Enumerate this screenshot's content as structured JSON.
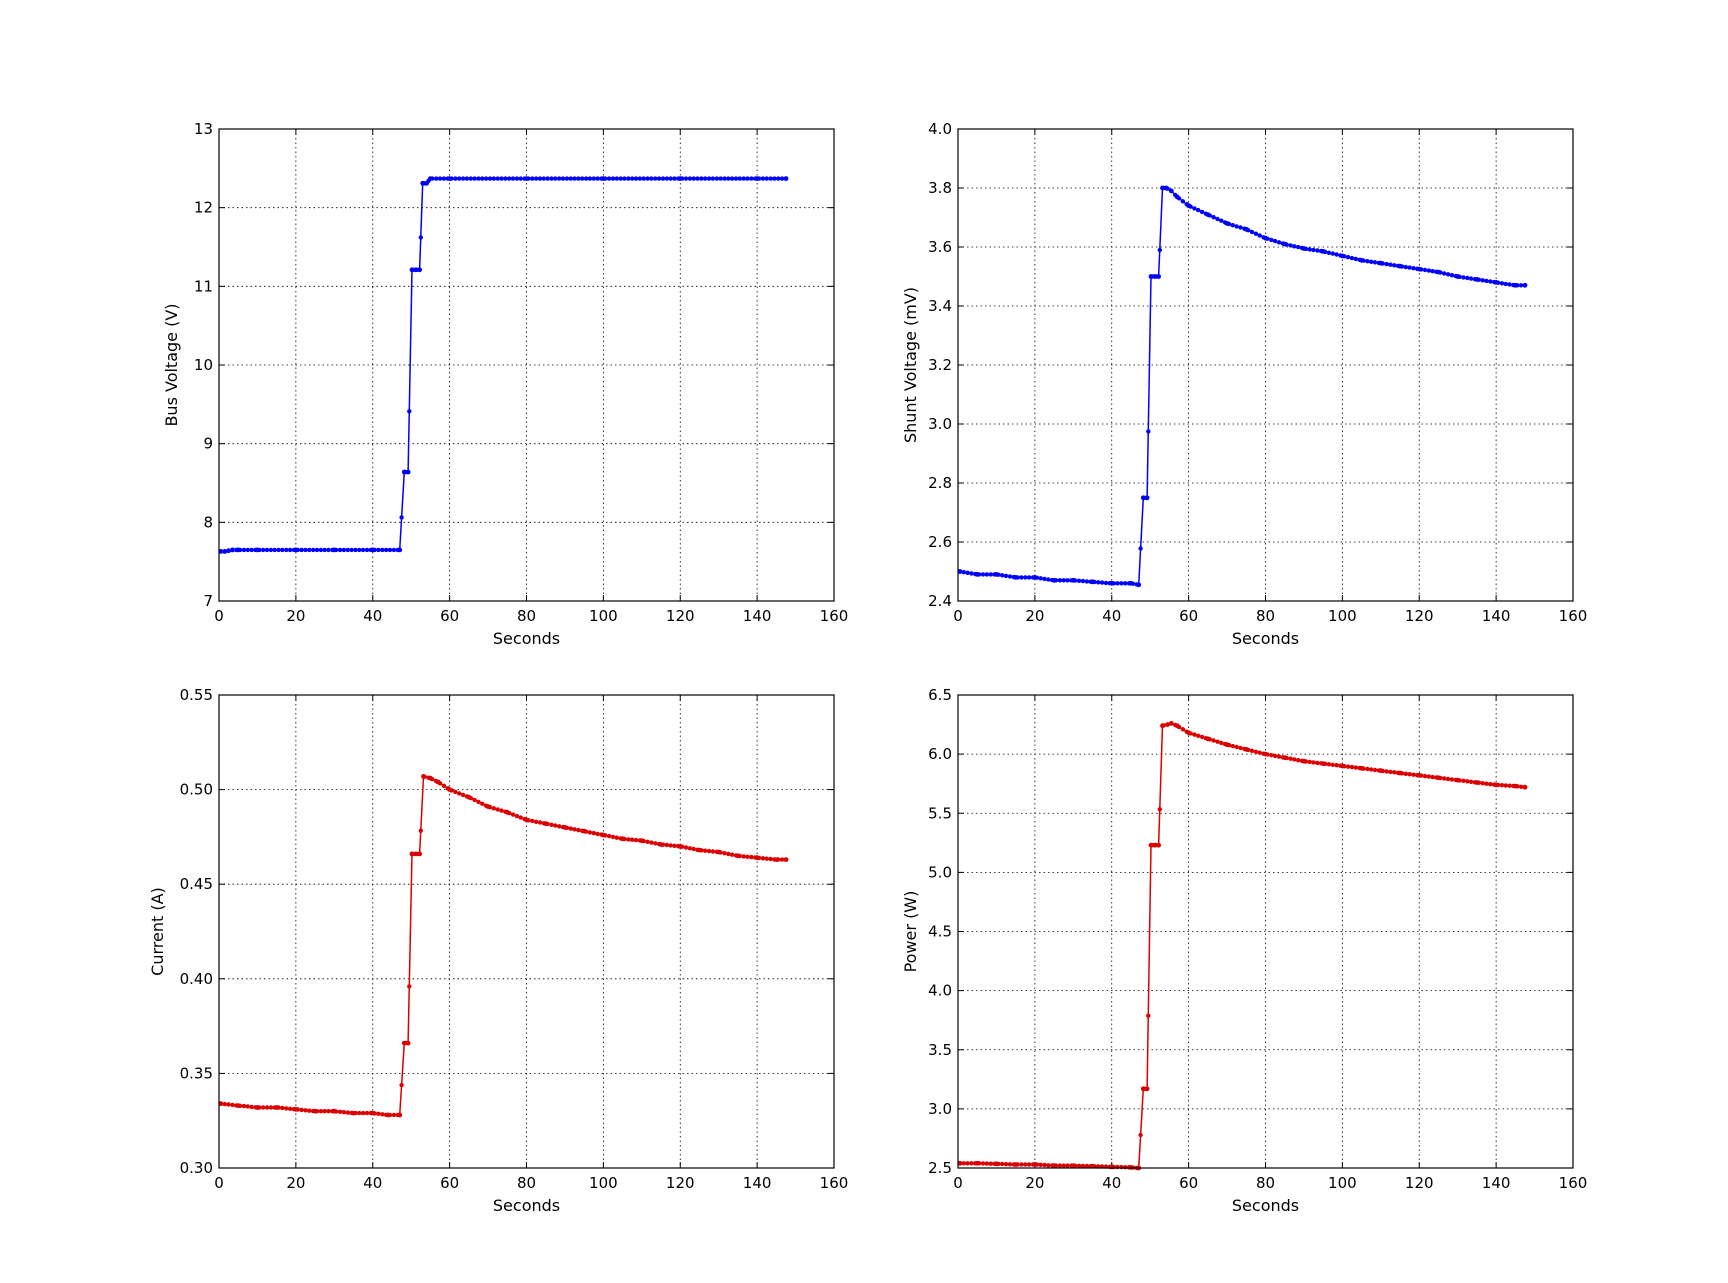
{
  "chart_data": [
    {
      "type": "line",
      "xlabel": "Seconds",
      "ylabel": "Bus Voltage (V)",
      "xlim": [
        0,
        160
      ],
      "ylim": [
        7,
        13
      ],
      "xticks": [
        "0",
        "20",
        "40",
        "60",
        "80",
        "100",
        "120",
        "140",
        "160"
      ],
      "yticks": [
        "7",
        "8",
        "9",
        "10",
        "11",
        "12",
        "13"
      ],
      "grid": true,
      "color": "#0000ff",
      "series": [
        {
          "points": [
            [
              0.5,
              7.63
            ],
            [
              1.5,
              7.63
            ],
            [
              2.5,
              7.64
            ],
            [
              3.5,
              7.65
            ],
            [
              5,
              7.65
            ],
            [
              10,
              7.65
            ],
            [
              20,
              7.65
            ],
            [
              30,
              7.65
            ],
            [
              40,
              7.65
            ],
            [
              47,
              7.65
            ],
            [
              48.2,
              8.64
            ],
            [
              49.2,
              8.64
            ],
            [
              50.2,
              11.21
            ],
            [
              51.2,
              11.21
            ],
            [
              52.2,
              11.21
            ],
            [
              53,
              12.31
            ],
            [
              54,
              12.31
            ],
            [
              55,
              12.37
            ],
            [
              60,
              12.37
            ],
            [
              80,
              12.37
            ],
            [
              100,
              12.37
            ],
            [
              120,
              12.37
            ],
            [
              140,
              12.37
            ],
            [
              147.5,
              12.37
            ]
          ]
        }
      ]
    },
    {
      "type": "line",
      "xlabel": "Seconds",
      "ylabel": "Shunt Voltage (mV)",
      "xlim": [
        0,
        160
      ],
      "ylim": [
        2.4,
        4.0
      ],
      "xticks": [
        "0",
        "20",
        "40",
        "60",
        "80",
        "100",
        "120",
        "140",
        "160"
      ],
      "yticks": [
        "2.4",
        "2.6",
        "2.8",
        "3.0",
        "3.2",
        "3.4",
        "3.6",
        "3.8",
        "4.0"
      ],
      "grid": true,
      "color": "#0000ff",
      "series": [
        {
          "points": [
            [
              0.5,
              2.5
            ],
            [
              5,
              2.49
            ],
            [
              10,
              2.49
            ],
            [
              15,
              2.48
            ],
            [
              20,
              2.48
            ],
            [
              25,
              2.47
            ],
            [
              30,
              2.47
            ],
            [
              35,
              2.465
            ],
            [
              40,
              2.46
            ],
            [
              45,
              2.46
            ],
            [
              47,
              2.455
            ],
            [
              48.2,
              2.75
            ],
            [
              49.2,
              2.75
            ],
            [
              50.2,
              3.5
            ],
            [
              51.2,
              3.5
            ],
            [
              52.2,
              3.5
            ],
            [
              53.2,
              3.8
            ],
            [
              54.2,
              3.8
            ],
            [
              55.5,
              3.79
            ],
            [
              57,
              3.77
            ],
            [
              60,
              3.74
            ],
            [
              65,
              3.71
            ],
            [
              70,
              3.68
            ],
            [
              75,
              3.66
            ],
            [
              80,
              3.63
            ],
            [
              85,
              3.61
            ],
            [
              90,
              3.595
            ],
            [
              95,
              3.585
            ],
            [
              100,
              3.57
            ],
            [
              105,
              3.555
            ],
            [
              110,
              3.545
            ],
            [
              115,
              3.535
            ],
            [
              120,
              3.525
            ],
            [
              125,
              3.515
            ],
            [
              130,
              3.5
            ],
            [
              135,
              3.49
            ],
            [
              140,
              3.48
            ],
            [
              145,
              3.47
            ],
            [
              147.5,
              3.47
            ]
          ]
        }
      ]
    },
    {
      "type": "line",
      "xlabel": "Seconds",
      "ylabel": "Current (A)",
      "xlim": [
        0,
        160
      ],
      "ylim": [
        0.3,
        0.55
      ],
      "xticks": [
        "0",
        "20",
        "40",
        "60",
        "80",
        "100",
        "120",
        "140",
        "160"
      ],
      "yticks": [
        "0.30",
        "0.35",
        "0.40",
        "0.45",
        "0.50",
        "0.55"
      ],
      "grid": true,
      "color": "#dd0000",
      "series": [
        {
          "points": [
            [
              0.5,
              0.334
            ],
            [
              5,
              0.333
            ],
            [
              10,
              0.332
            ],
            [
              15,
              0.332
            ],
            [
              20,
              0.331
            ],
            [
              25,
              0.33
            ],
            [
              30,
              0.33
            ],
            [
              35,
              0.329
            ],
            [
              40,
              0.329
            ],
            [
              44,
              0.328
            ],
            [
              47,
              0.328
            ],
            [
              48.2,
              0.366
            ],
            [
              49.2,
              0.366
            ],
            [
              50.2,
              0.466
            ],
            [
              51.2,
              0.466
            ],
            [
              52.2,
              0.466
            ],
            [
              53.2,
              0.507
            ],
            [
              55,
              0.506
            ],
            [
              57,
              0.504
            ],
            [
              60,
              0.5
            ],
            [
              65,
              0.496
            ],
            [
              70,
              0.491
            ],
            [
              75,
              0.488
            ],
            [
              80,
              0.484
            ],
            [
              85,
              0.482
            ],
            [
              90,
              0.48
            ],
            [
              95,
              0.478
            ],
            [
              100,
              0.476
            ],
            [
              105,
              0.474
            ],
            [
              110,
              0.473
            ],
            [
              115,
              0.471
            ],
            [
              120,
              0.47
            ],
            [
              125,
              0.468
            ],
            [
              130,
              0.467
            ],
            [
              135,
              0.465
            ],
            [
              140,
              0.464
            ],
            [
              145,
              0.463
            ],
            [
              147.5,
              0.463
            ]
          ]
        }
      ]
    },
    {
      "type": "line",
      "xlabel": "Seconds",
      "ylabel": "Power (W)",
      "xlim": [
        0,
        160
      ],
      "ylim": [
        2.5,
        6.5
      ],
      "xticks": [
        "0",
        "20",
        "40",
        "60",
        "80",
        "100",
        "120",
        "140",
        "160"
      ],
      "yticks": [
        "2.5",
        "3.0",
        "3.5",
        "4.0",
        "4.5",
        "5.0",
        "5.5",
        "6.0",
        "6.5"
      ],
      "grid": true,
      "color": "#dd0000",
      "series": [
        {
          "points": [
            [
              0.5,
              2.54
            ],
            [
              5,
              2.54
            ],
            [
              10,
              2.535
            ],
            [
              15,
              2.53
            ],
            [
              20,
              2.53
            ],
            [
              25,
              2.52
            ],
            [
              30,
              2.52
            ],
            [
              35,
              2.515
            ],
            [
              40,
              2.51
            ],
            [
              45,
              2.505
            ],
            [
              47,
              2.5
            ],
            [
              48.2,
              3.17
            ],
            [
              49.2,
              3.17
            ],
            [
              50.2,
              5.23
            ],
            [
              51.2,
              5.23
            ],
            [
              52.2,
              5.23
            ],
            [
              53.2,
              6.24
            ],
            [
              54.5,
              6.25
            ],
            [
              55.5,
              6.26
            ],
            [
              57,
              6.24
            ],
            [
              60,
              6.18
            ],
            [
              65,
              6.13
            ],
            [
              70,
              6.08
            ],
            [
              75,
              6.04
            ],
            [
              80,
              6.0
            ],
            [
              85,
              5.97
            ],
            [
              90,
              5.94
            ],
            [
              95,
              5.92
            ],
            [
              100,
              5.9
            ],
            [
              105,
              5.88
            ],
            [
              110,
              5.86
            ],
            [
              115,
              5.84
            ],
            [
              120,
              5.82
            ],
            [
              125,
              5.8
            ],
            [
              130,
              5.78
            ],
            [
              135,
              5.76
            ],
            [
              140,
              5.74
            ],
            [
              145,
              5.73
            ],
            [
              147.5,
              5.72
            ]
          ]
        }
      ]
    }
  ]
}
